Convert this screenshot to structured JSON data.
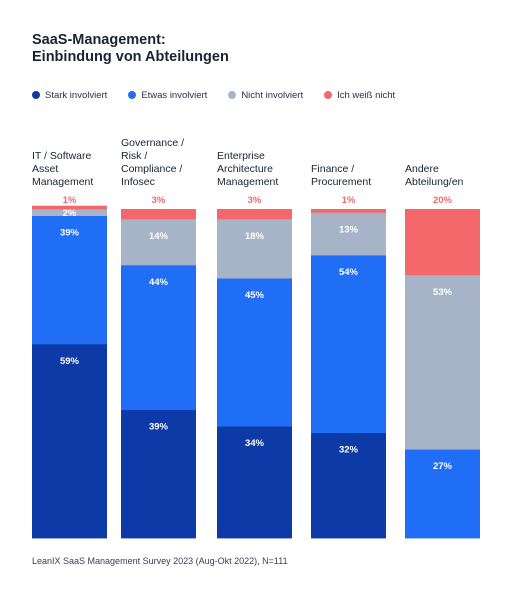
{
  "title": {
    "line1": "SaaS-Management:",
    "line2": "Einbindung von Abteilungen"
  },
  "legend": [
    {
      "label": "Stark involviert",
      "color": "#0d3aa6"
    },
    {
      "label": "Etwas involviert",
      "color": "#1f6ef5"
    },
    {
      "label": "Nicht involviert",
      "color": "#a7b4c8"
    },
    {
      "label": "Ich weiß nicht",
      "color": "#f4686c"
    }
  ],
  "categories": [
    {
      "lines": [
        "IT / Software",
        "Asset",
        "Management"
      ]
    },
    {
      "lines": [
        "Governance /",
        "Risk /",
        "Compliance /",
        "Infosec"
      ]
    },
    {
      "lines": [
        "Enterprise",
        "Architecture",
        "Management"
      ]
    },
    {
      "lines": [
        "Finance /",
        "Procurement"
      ]
    },
    {
      "lines": [
        "Andere",
        "Abteilung/en"
      ]
    }
  ],
  "chart_data": {
    "type": "bar",
    "stacked": true,
    "unit": "%",
    "categories": [
      "IT / Software Asset Management",
      "Governance / Risk / Compliance / Infosec",
      "Enterprise Architecture Management",
      "Finance / Procurement",
      "Andere Abteilung/en"
    ],
    "series": [
      {
        "name": "Stark involviert",
        "color": "#0d3aa6",
        "values": [
          59,
          39,
          34,
          32,
          0
        ],
        "labels": [
          "59%",
          "39%",
          "34%",
          "32%",
          ""
        ]
      },
      {
        "name": "Etwas involviert",
        "color": "#1f6ef5",
        "values": [
          39,
          44,
          45,
          54,
          27
        ],
        "labels": [
          "39%",
          "44%",
          "45%",
          "54%",
          "27%"
        ]
      },
      {
        "name": "Nicht involviert",
        "color": "#a7b4c8",
        "values": [
          2,
          14,
          18,
          13,
          53
        ],
        "labels": [
          "2%",
          "14%",
          "18%",
          "13%",
          "53%"
        ]
      },
      {
        "name": "Ich weiß nicht",
        "color": "#f4686c",
        "values": [
          1,
          3,
          3,
          1,
          20
        ],
        "labels": [
          "1%",
          "3%",
          "3%",
          "1%",
          "20%"
        ]
      }
    ],
    "ylim": [
      0,
      100
    ]
  },
  "source": "LeanIX SaaS Management Survey 2023 (Aug-Okt 2022), N=111"
}
